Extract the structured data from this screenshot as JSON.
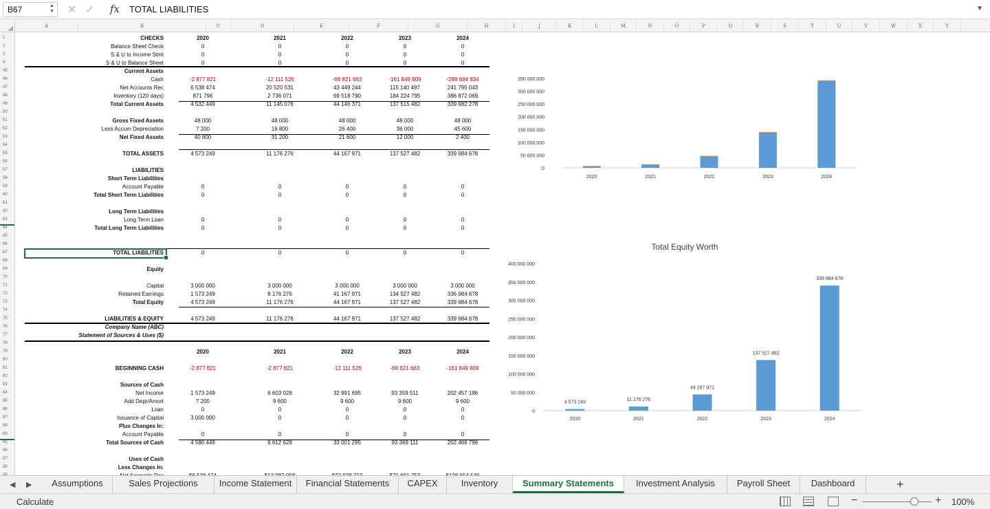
{
  "formula_bar": {
    "cell_ref": "B67",
    "formula": "TOTAL LIABILITIES"
  },
  "columns": [
    "A",
    "B",
    "C",
    "D",
    "E",
    "F",
    "G",
    "H",
    "I",
    "J",
    "K",
    "L",
    "M",
    "N",
    "O",
    "P",
    "Q",
    "R",
    "S",
    "T",
    "U",
    "V",
    "W",
    "X",
    "Y"
  ],
  "rows": [
    "1",
    "2",
    "3",
    "4",
    "45",
    "46",
    "47",
    "48",
    "49",
    "50",
    "51",
    "52",
    "53",
    "54",
    "55",
    "56",
    "57",
    "58",
    "59",
    "60",
    "61",
    "62",
    "63",
    "64",
    "65",
    "66",
    "67",
    "68",
    "69",
    "70",
    "71",
    "72",
    "73",
    "74",
    "75",
    "76",
    "77",
    "78",
    "79",
    "80",
    "81",
    "82",
    "83",
    "84",
    "85",
    "86",
    "87",
    "88",
    "89",
    "95",
    "96",
    "97",
    "98",
    "99"
  ],
  "years": [
    "2020",
    "2021",
    "2022",
    "2023",
    "2024"
  ],
  "sheet": {
    "checks": {
      "header": "CHECKS",
      "rows": [
        {
          "label": "Balance Sheet Check",
          "values": [
            "0",
            "0",
            "0",
            "0",
            "0"
          ]
        },
        {
          "label": "S & U to Income Stmt",
          "values": [
            "0",
            "0",
            "0",
            "0",
            "0"
          ]
        },
        {
          "label": "S & U to Balance Sheet",
          "values": [
            "0",
            "0",
            "0",
            "0",
            "0"
          ]
        }
      ]
    },
    "current_assets": {
      "header": "Current Assets",
      "cash": {
        "label": "Cash",
        "values": [
          "-2 877 821",
          "-12 111 526",
          "-68 821 663",
          "-161 849 809",
          "-288 684 834"
        ]
      },
      "net_ar": {
        "label": "Net Accounts Rec",
        "values": [
          "6 538 474",
          "20 520 531",
          "43 449 244",
          "115 140 497",
          "241 795 043"
        ]
      },
      "inventory": {
        "label": "Inventory (120 days)",
        "values": [
          "871 796",
          "2 736 071",
          "69 518 790",
          "184 224 795",
          "386 872 069"
        ]
      },
      "total": {
        "label": "Total Current Assets",
        "values": [
          "4 532 449",
          "11 145 076",
          "44 146 371",
          "137 515 482",
          "339 982 278"
        ]
      }
    },
    "fixed_assets": {
      "gross": {
        "label": "Gross Fixed Assets",
        "values": [
          "48 000",
          "48 000",
          "48 000",
          "48 000",
          "48 000"
        ]
      },
      "depr": {
        "label": "Less Accum Depreciation",
        "values": [
          "7 200",
          "16 800",
          "26 400",
          "36 000",
          "45 600"
        ]
      },
      "net": {
        "label": "Net Fixed Assets",
        "values": [
          "40 800",
          "31 200",
          "21 600",
          "12 000",
          "2 400"
        ]
      }
    },
    "total_assets": {
      "label": "TOTAL ASSETS",
      "values": [
        "4 573 249",
        "11 176 276",
        "44 167 971",
        "137 527 482",
        "339 984 678"
      ]
    },
    "liabilities_header": "LIABILITIES",
    "short_term_header": "Short Term Liabilities",
    "account_payable": {
      "label": "Account Payable",
      "values": [
        "0",
        "0",
        "0",
        "0",
        "0"
      ]
    },
    "total_short_term": {
      "label": "Total Short Term Liabilities",
      "values": [
        "0",
        "0",
        "0",
        "0",
        "0"
      ]
    },
    "long_term_header": "Long Term Liabilities",
    "long_term_loan": {
      "label": "Long Term Loan",
      "values": [
        "0",
        "0",
        "0",
        "0",
        "0"
      ]
    },
    "total_long_term": {
      "label": "Total Long Term Liabilities",
      "values": [
        "0",
        "0",
        "0",
        "0",
        "0"
      ]
    },
    "total_liabilities": {
      "label": "TOTAL LIABILITIES",
      "values": [
        "0",
        "0",
        "0",
        "0",
        "0"
      ]
    },
    "equity_header": "Equity",
    "capital": {
      "label": "Capital",
      "values": [
        "3 000 000",
        "3 000 000",
        "3 000 000",
        "3 000 000",
        "3 000 000"
      ]
    },
    "retained": {
      "label": "Retained Earnings",
      "values": [
        "1 573 249",
        "8 176 276",
        "41 167 971",
        "134 527 482",
        "336 984 678"
      ]
    },
    "total_equity": {
      "label": "Total Equity",
      "values": [
        "4 573 249",
        "11 176 276",
        "44 167 971",
        "137 527 482",
        "339 984 678"
      ]
    },
    "liab_equity": {
      "label": "LIABILITIES & EQUITY",
      "values": [
        "4 573 249",
        "11 176 276",
        "44 167 971",
        "137 527 482",
        "339 984 678"
      ]
    },
    "company_name": "Company Name (ABC)",
    "statement_title": "Statement of Sources & Uses ($)",
    "beginning_cash": {
      "label": "BEGINNING CASH",
      "values": [
        "-2 877 821",
        "-2 877 821",
        "-12 111 526",
        "-68 821 663",
        "-161 849 809"
      ]
    },
    "sources_header": "Sources of Cash",
    "net_income": {
      "label": "Net Income",
      "values": [
        "1 573 249",
        "6 603 028",
        "32 991 695",
        "93 359 511",
        "202 457 196"
      ]
    },
    "add_depr": {
      "label": "Add Depr/Amort",
      "values": [
        "7 200",
        "9 600",
        "9 600",
        "9 600",
        "9 600"
      ]
    },
    "loan": {
      "label": "Loan",
      "values": [
        "0",
        "0",
        "0",
        "0",
        "0"
      ]
    },
    "issuance": {
      "label": "Issuance of Capital",
      "values": [
        "3 000 000",
        "0",
        "0",
        "0",
        "0"
      ]
    },
    "plus_changes": "Plus Changes In:",
    "ap_change": {
      "label": "Account Payable",
      "values": [
        "0",
        "0",
        "0",
        "0",
        "0"
      ]
    },
    "total_sources": {
      "label": "Total Sources of Cash",
      "values": [
        "4 580 449",
        "6 612 628",
        "33 001 295",
        "93 369 111",
        "202 466 796"
      ]
    },
    "uses_header": "Uses of Cash",
    "less_changes": "Less Changes In:",
    "net_ar_change": {
      "label": "Net Accounts Rec",
      "values": [
        "$6 538 474",
        "$13 982 058",
        "$22 928 713",
        "$71 691 253",
        "$126 654 546"
      ]
    }
  },
  "chart_data": [
    {
      "type": "bar",
      "title": "",
      "categories": [
        "2020",
        "2021",
        "2022",
        "2023",
        "2024"
      ],
      "series": [
        {
          "name": "",
          "values": [
            4532449,
            11145076,
            44146371,
            137515482,
            339982278
          ],
          "color": "#5b9bd5"
        },
        {
          "name": "",
          "values": [
            40800,
            31200,
            21600,
            12000,
            2400
          ],
          "color": "#ed7d31"
        }
      ],
      "stacked": true,
      "ylim": [
        0,
        350000000
      ],
      "yticks": [
        "0",
        "50 000 000",
        "100 000 000",
        "150 000 000",
        "200 000 000",
        "250 000 000",
        "300 000 000",
        "350 000 000"
      ],
      "grid": false
    },
    {
      "type": "bar",
      "title": "Total Equity Worth",
      "categories": [
        "2020",
        "2021",
        "2022",
        "2023",
        "2024"
      ],
      "values": [
        4573249,
        11176276,
        44167971,
        137527482,
        339984678
      ],
      "data_labels": [
        "4 573 249",
        "11 176 276",
        "44 167 971",
        "137 527 482",
        "339 984 678"
      ],
      "color": "#5b9bd5",
      "ylim": [
        0,
        400000000
      ],
      "yticks": [
        "0",
        "50 000 000",
        "100 000 000",
        "150 000 000",
        "200 000 000",
        "250 000 000",
        "300 000 000",
        "350 000 000",
        "400 000 000"
      ],
      "grid": false
    }
  ],
  "tabs": [
    "Assumptions",
    "Sales Projections",
    "Income Statement",
    "Financial Statements",
    "CAPEX",
    "Inventory",
    "Summary Statements",
    "Investment Analysis",
    "Payroll Sheet",
    "Dashboard"
  ],
  "active_tab": "Summary Statements",
  "status": {
    "text": "Calculate",
    "zoom": "100%"
  }
}
